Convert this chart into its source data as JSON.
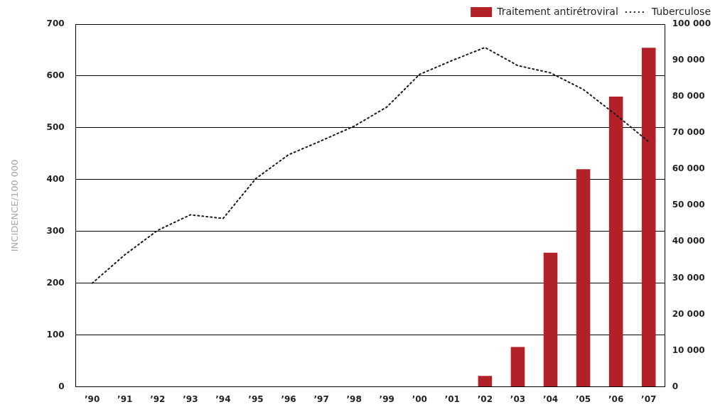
{
  "chart_data": {
    "type": "bar",
    "ylabel": "INCIDENCE/100 000",
    "categories": [
      "’90",
      "’91",
      "’92",
      "’93",
      "’94",
      "’95",
      "’96",
      "’97",
      "’98",
      "’99",
      "’00",
      "’01",
      "’02",
      "’03",
      "’04",
      "’05",
      "’06",
      "’07"
    ],
    "series": [
      {
        "name": "Traitement antirétroviral",
        "axis": "y2",
        "color": "#b22028",
        "values": [
          null,
          null,
          null,
          null,
          null,
          null,
          null,
          null,
          null,
          null,
          null,
          null,
          3000,
          11000,
          37000,
          60000,
          80000,
          93500
        ]
      },
      {
        "name": "Tuberculose",
        "type": "line",
        "line_style": "dotted",
        "marker": "none",
        "color": "#1a1a1a",
        "values": [
          200,
          255,
          302,
          332,
          325,
          402,
          448,
          475,
          503,
          540,
          603,
          630,
          655,
          620,
          606,
          574,
          525,
          473
        ]
      }
    ],
    "ylim": [
      0,
      700
    ],
    "yticks": [
      0,
      100,
      200,
      300,
      400,
      500,
      600,
      700
    ],
    "y2lim": [
      0,
      100000
    ],
    "y2ticks": [
      {
        "value": 0,
        "label": "0"
      },
      {
        "value": 10000,
        "label": "10 000"
      },
      {
        "value": 20000,
        "label": "20 000"
      },
      {
        "value": 30000,
        "label": "30 000"
      },
      {
        "value": 40000,
        "label": "40 000"
      },
      {
        "value": 50000,
        "label": "50 000"
      },
      {
        "value": 60000,
        "label": "60 000"
      },
      {
        "value": 70000,
        "label": "70 000"
      },
      {
        "value": 80000,
        "label": "80 000"
      },
      {
        "value": 90000,
        "label": "90 000"
      },
      {
        "value": 100000,
        "label": "100 000"
      }
    ],
    "grid": "y",
    "legend": "top right"
  }
}
